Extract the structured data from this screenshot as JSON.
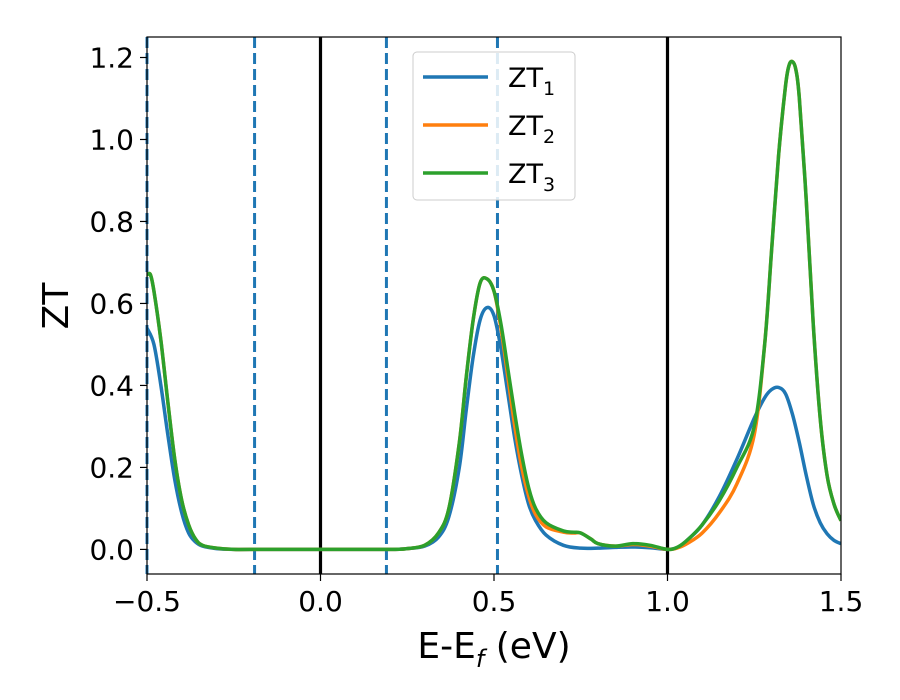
{
  "chart_data": {
    "type": "line",
    "xlabel": {
      "main": "E-E",
      "sub": "f",
      "unit": " (eV)"
    },
    "ylabel": "ZT",
    "xlim": [
      -0.5,
      1.5
    ],
    "ylim": [
      -0.06,
      1.25
    ],
    "xticks": [
      -0.5,
      0.0,
      0.5,
      1.0,
      1.5
    ],
    "xtick_labels": [
      "−0.5",
      "0.0",
      "0.5",
      "1.0",
      "1.5"
    ],
    "yticks": [
      0.0,
      0.2,
      0.4,
      0.6,
      0.8,
      1.0,
      1.2
    ],
    "ytick_labels": [
      "0.0",
      "0.2",
      "0.4",
      "0.6",
      "0.8",
      "1.0",
      "1.2"
    ],
    "grid": false,
    "legend_position": "top-center",
    "vlines": [
      {
        "x": -0.5,
        "style": "dashed",
        "color": "#1f77b4"
      },
      {
        "x": -0.19,
        "style": "dashed",
        "color": "#1f77b4"
      },
      {
        "x": 0.19,
        "style": "dashed",
        "color": "#1f77b4"
      },
      {
        "x": 0.51,
        "style": "dashed",
        "color": "#1f77b4"
      },
      {
        "x": 0.0,
        "style": "solid",
        "color": "#000000"
      },
      {
        "x": 1.0,
        "style": "solid",
        "color": "#000000"
      }
    ],
    "series": [
      {
        "name": "ZT",
        "sub": "1",
        "color": "#1f77b4",
        "x": [
          -0.5,
          -0.48,
          -0.46,
          -0.44,
          -0.42,
          -0.4,
          -0.38,
          -0.36,
          -0.34,
          -0.3,
          -0.25,
          -0.2,
          0.0,
          0.2,
          0.25,
          0.3,
          0.34,
          0.37,
          0.4,
          0.42,
          0.44,
          0.46,
          0.48,
          0.5,
          0.52,
          0.54,
          0.56,
          0.58,
          0.6,
          0.62,
          0.65,
          0.7,
          0.75,
          0.8,
          0.85,
          0.9,
          0.95,
          1.0,
          1.03,
          1.06,
          1.1,
          1.15,
          1.2,
          1.25,
          1.28,
          1.3,
          1.32,
          1.34,
          1.36,
          1.38,
          1.4,
          1.42,
          1.44,
          1.46,
          1.48,
          1.5
        ],
        "y": [
          0.54,
          0.5,
          0.4,
          0.28,
          0.17,
          0.09,
          0.04,
          0.018,
          0.008,
          0.002,
          0.0,
          0.0,
          0.0,
          0.0,
          0.002,
          0.008,
          0.03,
          0.08,
          0.2,
          0.34,
          0.47,
          0.56,
          0.59,
          0.57,
          0.49,
          0.38,
          0.27,
          0.18,
          0.11,
          0.07,
          0.035,
          0.01,
          0.003,
          0.003,
          0.005,
          0.006,
          0.004,
          0.0,
          0.005,
          0.025,
          0.06,
          0.13,
          0.22,
          0.32,
          0.37,
          0.39,
          0.395,
          0.38,
          0.33,
          0.26,
          0.18,
          0.11,
          0.065,
          0.038,
          0.022,
          0.014
        ]
      },
      {
        "name": "ZT",
        "sub": "2",
        "color": "#ff7f0e",
        "x": [
          -0.5,
          -0.49,
          -0.48,
          -0.46,
          -0.44,
          -0.42,
          -0.4,
          -0.38,
          -0.36,
          -0.34,
          -0.3,
          -0.25,
          -0.2,
          0.0,
          0.2,
          0.25,
          0.3,
          0.34,
          0.37,
          0.4,
          0.42,
          0.44,
          0.46,
          0.48,
          0.5,
          0.52,
          0.54,
          0.56,
          0.58,
          0.6,
          0.62,
          0.65,
          0.7,
          0.73,
          0.75,
          0.78,
          0.8,
          0.85,
          0.9,
          0.95,
          1.0,
          1.03,
          1.06,
          1.1,
          1.15,
          1.2,
          1.25,
          1.28,
          1.3,
          1.32,
          1.34,
          1.35,
          1.36,
          1.37,
          1.38,
          1.4,
          1.42,
          1.44,
          1.46,
          1.48,
          1.5
        ],
        "y": [
          0.67,
          0.67,
          0.63,
          0.51,
          0.36,
          0.22,
          0.12,
          0.06,
          0.025,
          0.01,
          0.003,
          0.0,
          0.0,
          0.0,
          0.0,
          0.002,
          0.01,
          0.04,
          0.1,
          0.26,
          0.42,
          0.56,
          0.65,
          0.66,
          0.63,
          0.54,
          0.42,
          0.3,
          0.2,
          0.13,
          0.085,
          0.055,
          0.042,
          0.04,
          0.04,
          0.025,
          0.014,
          0.008,
          0.012,
          0.008,
          0.0,
          0.004,
          0.016,
          0.04,
          0.09,
          0.16,
          0.28,
          0.5,
          0.73,
          0.96,
          1.13,
          1.18,
          1.19,
          1.17,
          1.1,
          0.85,
          0.55,
          0.32,
          0.18,
          0.11,
          0.07
        ]
      },
      {
        "name": "ZT",
        "sub": "3",
        "color": "#2ca02c",
        "x": [
          -0.5,
          -0.49,
          -0.48,
          -0.46,
          -0.44,
          -0.42,
          -0.4,
          -0.38,
          -0.36,
          -0.34,
          -0.3,
          -0.25,
          -0.2,
          0.0,
          0.2,
          0.25,
          0.3,
          0.34,
          0.37,
          0.4,
          0.42,
          0.44,
          0.46,
          0.48,
          0.5,
          0.52,
          0.54,
          0.56,
          0.58,
          0.6,
          0.62,
          0.65,
          0.7,
          0.73,
          0.75,
          0.78,
          0.8,
          0.85,
          0.9,
          0.95,
          1.0,
          1.03,
          1.06,
          1.1,
          1.15,
          1.2,
          1.25,
          1.28,
          1.3,
          1.32,
          1.34,
          1.35,
          1.36,
          1.37,
          1.38,
          1.4,
          1.42,
          1.44,
          1.46,
          1.48,
          1.5
        ],
        "y": [
          0.67,
          0.67,
          0.63,
          0.51,
          0.36,
          0.22,
          0.12,
          0.06,
          0.025,
          0.01,
          0.003,
          0.0,
          0.0,
          0.0,
          0.0,
          0.002,
          0.01,
          0.04,
          0.1,
          0.26,
          0.42,
          0.56,
          0.65,
          0.66,
          0.63,
          0.55,
          0.44,
          0.33,
          0.23,
          0.15,
          0.1,
          0.065,
          0.045,
          0.042,
          0.04,
          0.025,
          0.014,
          0.008,
          0.014,
          0.01,
          0.0,
          0.006,
          0.025,
          0.06,
          0.12,
          0.2,
          0.3,
          0.5,
          0.73,
          0.96,
          1.13,
          1.18,
          1.19,
          1.17,
          1.1,
          0.85,
          0.55,
          0.32,
          0.18,
          0.11,
          0.07
        ]
      }
    ]
  }
}
